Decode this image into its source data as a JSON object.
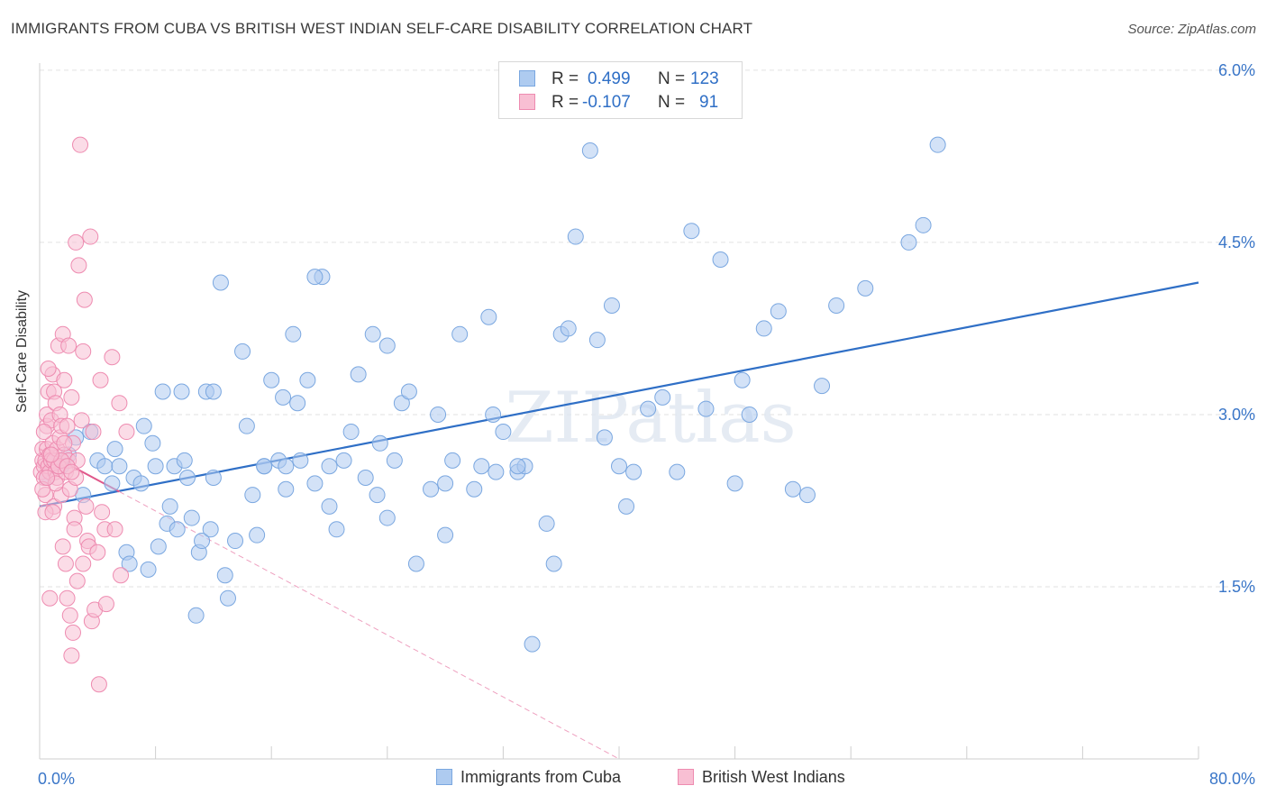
{
  "title": "IMMIGRANTS FROM CUBA VS BRITISH WEST INDIAN SELF-CARE DISABILITY CORRELATION CHART",
  "source": "Source: ZipAtlas.com",
  "watermark": "ZIPatlas",
  "legend": {
    "rows": [
      {
        "r_label": "R =",
        "r_value": "0.499",
        "n_label": "N =",
        "n_value": "123",
        "color": "#aecbf0",
        "border": "#7aa7e0"
      },
      {
        "r_label": "R =",
        "r_value": "-0.107",
        "n_label": "N =",
        "n_value": "91",
        "color": "#f8bfd3",
        "border": "#ee8bb0"
      }
    ]
  },
  "bottom_legend": [
    {
      "label": "Immigrants from Cuba",
      "color": "#aecbf0",
      "border": "#7aa7e0"
    },
    {
      "label": "British West Indians",
      "color": "#f8bfd3",
      "border": "#ee8bb0"
    }
  ],
  "chart_data": {
    "type": "scatter",
    "title": "IMMIGRANTS FROM CUBA VS BRITISH WEST INDIAN SELF-CARE DISABILITY CORRELATION CHART",
    "xlabel": "",
    "ylabel": "Self-Care Disability",
    "xlim": [
      0,
      80
    ],
    "ylim": [
      0,
      6.2
    ],
    "x_tick_labels": [
      "0.0%",
      "80.0%"
    ],
    "y_ticks": [
      1.5,
      3.0,
      4.5,
      6.0
    ],
    "y_tick_labels": [
      "1.5%",
      "3.0%",
      "4.5%",
      "6.0%"
    ],
    "grid": true,
    "legend_position": "top-center",
    "series": [
      {
        "name": "Immigrants from Cuba",
        "color": "#7aa7e0",
        "fill": "#aecbf0",
        "trend": {
          "x": [
            0,
            80
          ],
          "y": [
            2.2,
            4.15
          ]
        },
        "points": [
          [
            0.5,
            2.45
          ],
          [
            0.8,
            2.55
          ],
          [
            1.0,
            2.6
          ],
          [
            1.5,
            2.55
          ],
          [
            2.0,
            2.65
          ],
          [
            2.5,
            2.8
          ],
          [
            3,
            2.3
          ],
          [
            3.5,
            2.85
          ],
          [
            4,
            2.6
          ],
          [
            4.5,
            2.55
          ],
          [
            5,
            2.4
          ],
          [
            5.2,
            2.7
          ],
          [
            5.5,
            2.55
          ],
          [
            6,
            1.8
          ],
          [
            6.2,
            1.7
          ],
          [
            6.5,
            2.45
          ],
          [
            7,
            2.4
          ],
          [
            7.2,
            2.9
          ],
          [
            7.5,
            1.65
          ],
          [
            7.8,
            2.75
          ],
          [
            8,
            2.55
          ],
          [
            8.2,
            1.85
          ],
          [
            8.5,
            3.2
          ],
          [
            8.8,
            2.05
          ],
          [
            9,
            2.2
          ],
          [
            9.3,
            2.55
          ],
          [
            9.5,
            2.0
          ],
          [
            9.8,
            3.2
          ],
          [
            10,
            2.6
          ],
          [
            10.2,
            2.45
          ],
          [
            10.5,
            2.1
          ],
          [
            10.8,
            1.25
          ],
          [
            11,
            1.8
          ],
          [
            11.2,
            1.9
          ],
          [
            11.5,
            3.2
          ],
          [
            11.8,
            2.0
          ],
          [
            12,
            3.2
          ],
          [
            12.5,
            4.15
          ],
          [
            12.8,
            1.6
          ],
          [
            13,
            1.4
          ],
          [
            13.5,
            1.9
          ],
          [
            14,
            3.55
          ],
          [
            14.3,
            2.9
          ],
          [
            14.7,
            2.3
          ],
          [
            15,
            1.95
          ],
          [
            15.5,
            2.55
          ],
          [
            16,
            3.3
          ],
          [
            16.5,
            2.6
          ],
          [
            16.8,
            3.15
          ],
          [
            17,
            2.55
          ],
          [
            17.5,
            3.7
          ],
          [
            17.8,
            3.1
          ],
          [
            18,
            2.6
          ],
          [
            18.5,
            3.3
          ],
          [
            19,
            2.4
          ],
          [
            19.5,
            4.2
          ],
          [
            20,
            2.2
          ],
          [
            20.5,
            2.0
          ],
          [
            21,
            2.6
          ],
          [
            21.5,
            2.85
          ],
          [
            22,
            3.35
          ],
          [
            22.5,
            2.45
          ],
          [
            23,
            3.7
          ],
          [
            23.3,
            2.3
          ],
          [
            23.5,
            2.75
          ],
          [
            24,
            3.6
          ],
          [
            24.5,
            2.6
          ],
          [
            25,
            3.1
          ],
          [
            25.5,
            3.2
          ],
          [
            26,
            1.7
          ],
          [
            27,
            2.35
          ],
          [
            27.5,
            3.0
          ],
          [
            28,
            1.95
          ],
          [
            28.5,
            2.6
          ],
          [
            29,
            3.7
          ],
          [
            30,
            2.35
          ],
          [
            30.5,
            2.55
          ],
          [
            31,
            3.85
          ],
          [
            31.3,
            3.0
          ],
          [
            31.5,
            2.5
          ],
          [
            32,
            2.85
          ],
          [
            33,
            2.5
          ],
          [
            33.5,
            2.55
          ],
          [
            34,
            1.0
          ],
          [
            35,
            2.05
          ],
          [
            35.5,
            1.7
          ],
          [
            36,
            3.7
          ],
          [
            36.5,
            3.75
          ],
          [
            37,
            4.55
          ],
          [
            38,
            5.3
          ],
          [
            38.5,
            3.65
          ],
          [
            39,
            2.8
          ],
          [
            39.5,
            3.95
          ],
          [
            40,
            2.55
          ],
          [
            40.5,
            2.2
          ],
          [
            41,
            2.5
          ],
          [
            42,
            3.05
          ],
          [
            43,
            3.15
          ],
          [
            44,
            2.5
          ],
          [
            45,
            4.6
          ],
          [
            46,
            3.05
          ],
          [
            47,
            4.35
          ],
          [
            48,
            2.4
          ],
          [
            48.5,
            3.3
          ],
          [
            49,
            3.0
          ],
          [
            50,
            3.75
          ],
          [
            51,
            3.9
          ],
          [
            52,
            2.35
          ],
          [
            53,
            2.3
          ],
          [
            54,
            3.25
          ],
          [
            55,
            3.95
          ],
          [
            57,
            4.1
          ],
          [
            60,
            4.5
          ],
          [
            61,
            4.65
          ],
          [
            62,
            5.35
          ],
          [
            19,
            4.2
          ],
          [
            20,
            2.55
          ],
          [
            12,
            2.45
          ],
          [
            15.5,
            2.55
          ],
          [
            17,
            2.35
          ],
          [
            24,
            2.1
          ],
          [
            28,
            2.4
          ],
          [
            33,
            2.55
          ]
        ]
      },
      {
        "name": "British West Indians",
        "color": "#ee8bb0",
        "fill": "#f8bfd3",
        "trend": {
          "x": [
            0,
            40
          ],
          "y": [
            2.7,
            0.0
          ]
        },
        "points": [
          [
            0.1,
            2.5
          ],
          [
            0.2,
            2.6
          ],
          [
            0.2,
            2.7
          ],
          [
            0.3,
            2.55
          ],
          [
            0.3,
            2.45
          ],
          [
            0.4,
            2.6
          ],
          [
            0.4,
            2.3
          ],
          [
            0.5,
            2.7
          ],
          [
            0.5,
            2.9
          ],
          [
            0.5,
            3.0
          ],
          [
            0.6,
            2.55
          ],
          [
            0.6,
            3.2
          ],
          [
            0.7,
            2.65
          ],
          [
            0.7,
            2.5
          ],
          [
            0.8,
            2.6
          ],
          [
            0.8,
            2.95
          ],
          [
            0.9,
            3.35
          ],
          [
            0.9,
            2.75
          ],
          [
            1.0,
            2.6
          ],
          [
            1.0,
            3.2
          ],
          [
            1.0,
            2.2
          ],
          [
            1.1,
            2.5
          ],
          [
            1.1,
            3.1
          ],
          [
            1.2,
            2.7
          ],
          [
            1.2,
            2.45
          ],
          [
            1.3,
            3.6
          ],
          [
            1.3,
            2.55
          ],
          [
            1.4,
            2.8
          ],
          [
            1.4,
            3.0
          ],
          [
            1.5,
            2.9
          ],
          [
            1.5,
            2.3
          ],
          [
            1.6,
            3.7
          ],
          [
            1.6,
            1.85
          ],
          [
            1.7,
            2.65
          ],
          [
            1.7,
            3.3
          ],
          [
            1.8,
            2.5
          ],
          [
            1.8,
            1.7
          ],
          [
            1.9,
            2.9
          ],
          [
            1.9,
            1.4
          ],
          [
            2.0,
            3.6
          ],
          [
            2.0,
            2.6
          ],
          [
            2.1,
            1.25
          ],
          [
            2.1,
            2.35
          ],
          [
            2.2,
            0.9
          ],
          [
            2.2,
            3.15
          ],
          [
            2.3,
            2.75
          ],
          [
            2.3,
            1.1
          ],
          [
            2.4,
            2.1
          ],
          [
            2.4,
            2.0
          ],
          [
            2.5,
            4.5
          ],
          [
            2.5,
            2.45
          ],
          [
            2.6,
            1.55
          ],
          [
            2.6,
            2.6
          ],
          [
            2.7,
            4.3
          ],
          [
            2.8,
            5.35
          ],
          [
            2.9,
            2.95
          ],
          [
            3.0,
            3.55
          ],
          [
            3.0,
            1.7
          ],
          [
            3.1,
            4.0
          ],
          [
            3.2,
            2.2
          ],
          [
            3.3,
            1.9
          ],
          [
            3.4,
            1.85
          ],
          [
            3.5,
            4.55
          ],
          [
            3.6,
            1.2
          ],
          [
            3.7,
            2.85
          ],
          [
            3.8,
            1.3
          ],
          [
            4.0,
            1.8
          ],
          [
            4.1,
            0.65
          ],
          [
            4.2,
            3.3
          ],
          [
            4.3,
            2.15
          ],
          [
            4.5,
            2.0
          ],
          [
            4.6,
            1.35
          ],
          [
            5.0,
            3.5
          ],
          [
            5.2,
            2.0
          ],
          [
            5.5,
            3.1
          ],
          [
            5.6,
            1.6
          ],
          [
            6.0,
            2.85
          ],
          [
            0.3,
            2.85
          ],
          [
            0.4,
            2.15
          ],
          [
            0.6,
            3.4
          ],
          [
            0.7,
            1.4
          ],
          [
            0.9,
            2.15
          ],
          [
            1.1,
            2.4
          ],
          [
            1.3,
            2.55
          ],
          [
            1.5,
            2.6
          ],
          [
            1.7,
            2.75
          ],
          [
            1.9,
            2.55
          ],
          [
            2.2,
            2.5
          ],
          [
            0.2,
            2.35
          ],
          [
            0.5,
            2.45
          ],
          [
            0.8,
            2.65
          ]
        ]
      }
    ]
  }
}
